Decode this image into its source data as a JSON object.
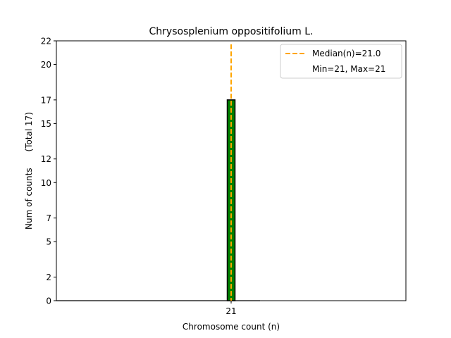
{
  "chart_data": {
    "type": "bar",
    "title": "Chrysosplenium oppositifolium L.",
    "xlabel": "Chromosome count (n)",
    "ylabel": "Num of counts      (Total 17)",
    "categories": [
      "21"
    ],
    "values": [
      17
    ],
    "ylim": [
      0,
      22
    ],
    "yticks": [
      0,
      2,
      5,
      7,
      10,
      12,
      15,
      17,
      20,
      22
    ],
    "grid": false,
    "median": 21.0,
    "legend_position": "top-right",
    "legend": [
      {
        "label": "Median(n)=21.0",
        "style": "dashed-line"
      },
      {
        "label": "Min=21, Max=21",
        "style": "none"
      }
    ],
    "colors": {
      "bar_fill": "#008000",
      "bar_edge": "#000000",
      "median_line": "#FFA500",
      "axis": "#000000"
    }
  }
}
